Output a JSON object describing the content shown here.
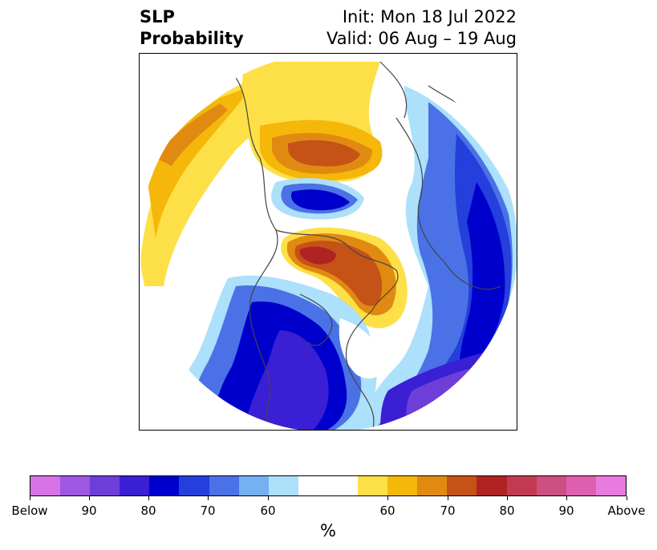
{
  "title": {
    "left_line1": "SLP",
    "left_line2": "Probability",
    "right_line1": "Init: Mon 18 Jul 2022",
    "right_line2": "Valid: 06 Aug – 19 Aug"
  },
  "colorbar": {
    "label": "%",
    "colors": [
      "#d672e6",
      "#9e57e0",
      "#6e3ed9",
      "#3a1fd4",
      "#0000cd",
      "#243fdb",
      "#4a72e6",
      "#74b0f2",
      "#ade0fa",
      "#ffffff",
      "#ffffff",
      "#fde047",
      "#f4b70a",
      "#e18a11",
      "#c55217",
      "#b02323",
      "#c23a52",
      "#cc4f81",
      "#dc60ae",
      "#e87ae0"
    ],
    "ticks": [
      {
        "label": "Below"
      },
      {
        "label": "90"
      },
      {
        "label": "80"
      },
      {
        "label": "70"
      },
      {
        "label": "60"
      },
      {
        "label": "60"
      },
      {
        "label": "70"
      },
      {
        "label": "80"
      },
      {
        "label": "90"
      },
      {
        "label": "Above"
      }
    ]
  }
}
